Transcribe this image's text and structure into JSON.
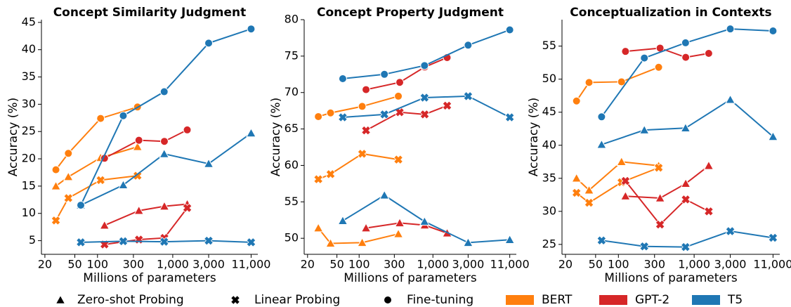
{
  "chart_data": [
    {
      "type": "line",
      "title": "Concept Similarity Judgment",
      "x_label": "Millions of parameters",
      "y_label": "Accuracy (%)",
      "xscale": "log",
      "xlim": [
        18,
        13500
      ],
      "xticks": [
        20,
        50,
        100,
        300,
        {
          "value": 1000,
          "label": "1,000"
        },
        {
          "value": 3000,
          "label": "3,000"
        },
        {
          "value": 11000,
          "label": "11,000"
        }
      ],
      "ylim": [
        2.5,
        45.5
      ],
      "yticks": [
        5,
        10,
        15,
        20,
        25,
        30,
        35,
        40,
        45
      ],
      "series": [
        {
          "model": "BERT",
          "method": "Zero-shot Probing",
          "x": [
            28,
            41,
            110,
            340
          ],
          "values": [
            15.0,
            16.7,
            20.2,
            22.2
          ]
        },
        {
          "model": "BERT",
          "method": "Linear Probing",
          "x": [
            28,
            41,
            110,
            340
          ],
          "values": [
            8.7,
            12.8,
            16.1,
            16.9
          ]
        },
        {
          "model": "BERT",
          "method": "Fine-tuning",
          "x": [
            28,
            41,
            110,
            340
          ],
          "values": [
            18.0,
            21.0,
            27.4,
            29.5
          ]
        },
        {
          "model": "GPT-2",
          "method": "Zero-shot Probing",
          "x": [
            124,
            355,
            774,
            1558
          ],
          "values": [
            7.8,
            10.5,
            11.3,
            11.7
          ]
        },
        {
          "model": "GPT-2",
          "method": "Linear Probing",
          "x": [
            124,
            355,
            774,
            1558
          ],
          "values": [
            4.3,
            5.2,
            5.5,
            11.0
          ]
        },
        {
          "model": "GPT-2",
          "method": "Fine-tuning",
          "x": [
            124,
            355,
            774,
            1558
          ],
          "values": [
            20.1,
            23.4,
            23.2,
            25.3
          ]
        },
        {
          "model": "T5",
          "method": "Zero-shot Probing",
          "x": [
            60,
            220,
            770,
            3000,
            11000
          ],
          "values": [
            11.5,
            15.2,
            20.9,
            19.1,
            24.7
          ]
        },
        {
          "model": "T5",
          "method": "Linear Probing",
          "x": [
            60,
            220,
            770,
            3000,
            11000
          ],
          "values": [
            4.7,
            4.9,
            4.8,
            5.0,
            4.7
          ]
        },
        {
          "model": "T5",
          "method": "Fine-tuning",
          "x": [
            60,
            220,
            770,
            3000,
            11000
          ],
          "values": [
            11.5,
            27.9,
            32.3,
            41.2,
            43.8
          ]
        }
      ]
    },
    {
      "type": "line",
      "title": "Concept Property Judgment",
      "x_label": "Millions of parameters",
      "y_label": "Accuracy (%)",
      "xscale": "log",
      "xlim": [
        18,
        13500
      ],
      "xticks": [
        20,
        50,
        100,
        300,
        {
          "value": 1000,
          "label": "1,000"
        },
        {
          "value": 3000,
          "label": "3,000"
        },
        {
          "value": 11000,
          "label": "11,000"
        }
      ],
      "ylim": [
        47.8,
        80
      ],
      "yticks": [
        50,
        55,
        60,
        65,
        70,
        75,
        80
      ],
      "series": [
        {
          "model": "BERT",
          "method": "Zero-shot Probing",
          "x": [
            28,
            41,
            110,
            340
          ],
          "values": [
            51.4,
            49.3,
            49.4,
            50.6
          ]
        },
        {
          "model": "BERT",
          "method": "Linear Probing",
          "x": [
            28,
            41,
            110,
            340
          ],
          "values": [
            58.1,
            58.8,
            61.6,
            60.8
          ]
        },
        {
          "model": "BERT",
          "method": "Fine-tuning",
          "x": [
            28,
            41,
            110,
            340
          ],
          "values": [
            66.7,
            67.2,
            68.1,
            69.5
          ]
        },
        {
          "model": "GPT-2",
          "method": "Zero-shot Probing",
          "x": [
            124,
            355,
            774,
            1558
          ],
          "values": [
            51.4,
            52.1,
            51.8,
            50.7
          ]
        },
        {
          "model": "GPT-2",
          "method": "Linear Probing",
          "x": [
            124,
            355,
            774,
            1558
          ],
          "values": [
            64.8,
            67.3,
            67.0,
            68.2
          ]
        },
        {
          "model": "GPT-2",
          "method": "Fine-tuning",
          "x": [
            124,
            355,
            774,
            1558
          ],
          "values": [
            70.4,
            71.4,
            73.5,
            74.8
          ]
        },
        {
          "model": "T5",
          "method": "Zero-shot Probing",
          "x": [
            60,
            220,
            770,
            3000,
            11000
          ],
          "values": [
            52.4,
            55.9,
            52.3,
            49.4,
            49.8
          ]
        },
        {
          "model": "T5",
          "method": "Linear Probing",
          "x": [
            60,
            220,
            770,
            3000,
            11000
          ],
          "values": [
            66.6,
            67.0,
            69.3,
            69.5,
            66.6
          ]
        },
        {
          "model": "T5",
          "method": "Fine-tuning",
          "x": [
            60,
            220,
            770,
            3000,
            11000
          ],
          "values": [
            71.9,
            72.5,
            73.7,
            76.5,
            78.6
          ]
        }
      ]
    },
    {
      "type": "line",
      "title": "Conceptualization in Contexts",
      "x_label": "Millions of parameters",
      "y_label": "Accuracy (%)",
      "xscale": "log",
      "xlim": [
        18,
        13500
      ],
      "xticks": [
        20,
        50,
        100,
        300,
        {
          "value": 1000,
          "label": "1,000"
        },
        {
          "value": 3000,
          "label": "3,000"
        },
        {
          "value": 11000,
          "label": "11,000"
        }
      ],
      "ylim": [
        23.5,
        59
      ],
      "yticks": [
        25,
        30,
        35,
        40,
        45,
        50,
        55
      ],
      "series": [
        {
          "model": "BERT",
          "method": "Zero-shot Probing",
          "x": [
            28,
            41,
            110,
            340
          ],
          "values": [
            35.0,
            33.2,
            37.5,
            36.9
          ]
        },
        {
          "model": "BERT",
          "method": "Linear Probing",
          "x": [
            28,
            41,
            110,
            340
          ],
          "values": [
            32.8,
            31.3,
            34.4,
            36.6
          ]
        },
        {
          "model": "BERT",
          "method": "Fine-tuning",
          "x": [
            28,
            41,
            110,
            340
          ],
          "values": [
            46.7,
            49.5,
            49.6,
            51.8
          ]
        },
        {
          "model": "GPT-2",
          "method": "Zero-shot Probing",
          "x": [
            124,
            355,
            774,
            1558
          ],
          "values": [
            32.3,
            32.0,
            34.2,
            36.9
          ]
        },
        {
          "model": "GPT-2",
          "method": "Linear Probing",
          "x": [
            124,
            355,
            774,
            1558
          ],
          "values": [
            34.6,
            28.0,
            31.8,
            30.0
          ]
        },
        {
          "model": "GPT-2",
          "method": "Fine-tuning",
          "x": [
            124,
            355,
            774,
            1558
          ],
          "values": [
            54.2,
            54.7,
            53.3,
            53.9
          ]
        },
        {
          "model": "T5",
          "method": "Zero-shot Probing",
          "x": [
            60,
            220,
            770,
            3000,
            11000
          ],
          "values": [
            40.1,
            42.3,
            42.6,
            46.9,
            41.3
          ]
        },
        {
          "model": "T5",
          "method": "Linear Probing",
          "x": [
            60,
            220,
            770,
            3000,
            11000
          ],
          "values": [
            25.6,
            24.7,
            24.6,
            27.0,
            26.0
          ]
        },
        {
          "model": "T5",
          "method": "Fine-tuning",
          "x": [
            60,
            220,
            770,
            3000,
            11000
          ],
          "values": [
            44.3,
            53.2,
            55.5,
            57.6,
            57.3
          ]
        }
      ]
    }
  ],
  "legend": {
    "methods": [
      {
        "name": "Zero-shot Probing",
        "marker": "triangle"
      },
      {
        "name": "Linear Probing",
        "marker": "x"
      },
      {
        "name": "Fine-tuning",
        "marker": "circle"
      }
    ],
    "models": [
      {
        "name": "BERT",
        "color": "#ff7f0e"
      },
      {
        "name": "GPT-2",
        "color": "#d62728"
      },
      {
        "name": "T5",
        "color": "#1f77b4"
      }
    ]
  }
}
